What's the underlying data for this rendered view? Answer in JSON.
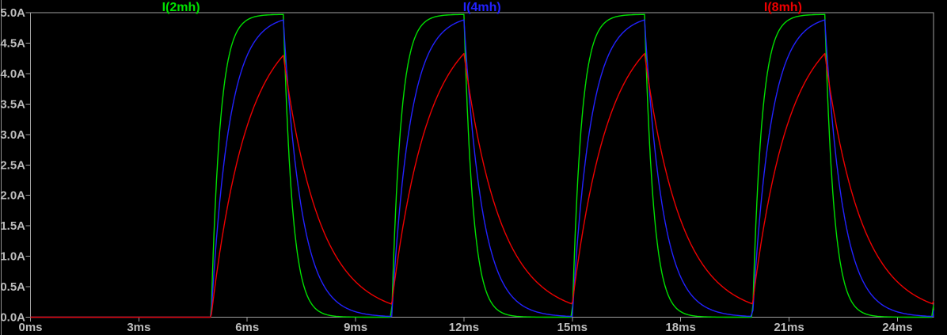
{
  "chart_data": {
    "type": "line",
    "title": "",
    "background_color": "#000000",
    "axis_color": "#a0a0a0",
    "tick_label_color": "#bdbdbd",
    "grid": false,
    "legend_position": "top",
    "x_axis": {
      "unit": "ms",
      "min_ms": 0,
      "max_ms": 25,
      "tick_step_ms": 3,
      "tick_labels": [
        "0ms",
        "3ms",
        "6ms",
        "9ms",
        "12ms",
        "15ms",
        "18ms",
        "21ms",
        "24ms"
      ]
    },
    "y_axis": {
      "unit": "A",
      "min_A": 0,
      "max_A": 5,
      "tick_step_A": 0.5,
      "tick_labels_top_to_bottom": [
        "5.0A",
        "4.5A",
        "4.0A",
        "3.5A",
        "3.0A",
        "2.5A",
        "2.0A",
        "1.5A",
        "1.0A",
        "0.5A",
        "0.0A"
      ]
    },
    "series": [
      {
        "name": "I(2mh)",
        "color": "#00e000",
        "inductance_mH": 2,
        "tau_ms": 0.25,
        "peak_A": 5.0
      },
      {
        "name": "I(4mh)",
        "color": "#2222ff",
        "inductance_mH": 4,
        "tau_ms": 0.5,
        "peak_A": 4.9
      },
      {
        "name": "I(8mh)",
        "color": "#ee0000",
        "inductance_mH": 8,
        "tau_ms": 1.0,
        "peak_A": 4.33
      }
    ],
    "excitation": {
      "type": "pulse",
      "first_rise_ms": 5,
      "period_ms": 5,
      "on_time_ms": 2,
      "steady_state_current_A": 5,
      "initial_current_A": 0
    },
    "description": "Transient simulation of inductor charge/discharge current for three inductances; each pulse turns on for 2 ms every 5 ms, larger inductance gives slower exponential rise and decay (tau = L/R)."
  }
}
